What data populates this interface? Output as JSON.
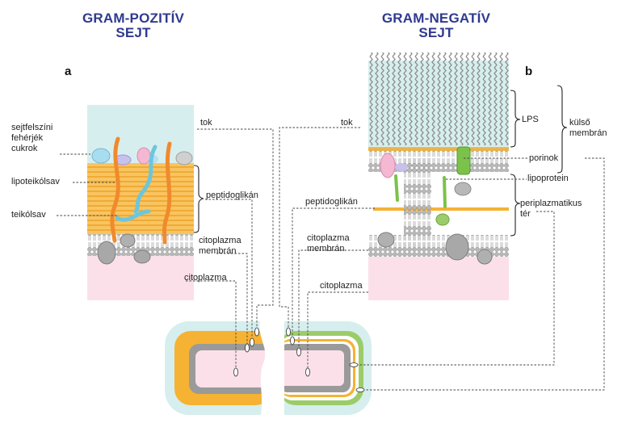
{
  "titles": {
    "gram_positive": [
      "GRAM-POZITÍV",
      "SEJT"
    ],
    "gram_negative": [
      "GRAM-NEGATÍV",
      "SEJT"
    ]
  },
  "panel_letters": {
    "a": "a",
    "b": "b"
  },
  "labels_positive": {
    "surface_proteins": [
      "sejtfelszíni",
      "fehérjék",
      "cukrok"
    ],
    "lipoteichoic": "lipoteikólsav",
    "teichoic": "teikólsav",
    "capsule": "tok",
    "peptidoglycan": "peptidoglikán",
    "cytoplasmic_membrane": [
      "citoplazma",
      "membrán"
    ],
    "cytoplasm": "citoplazma"
  },
  "labels_negative": {
    "capsule": "tok",
    "lps": "LPS",
    "outer_membrane": [
      "külső",
      "membrán"
    ],
    "porins": "porinok",
    "lipoprotein": "lipoprotein",
    "peptidoglycan": "peptidoglikán",
    "periplasm": [
      "periplazmatikus",
      "tér"
    ],
    "cytoplasmic_membrane": [
      "citoplazma",
      "membrán"
    ],
    "cytoplasm": "citoplazma"
  },
  "colors": {
    "title": "#2f3a8f",
    "capsule": "#d6eeee",
    "peptidoglycan": "#f6b233",
    "cytoplasm": "#fbe0ea",
    "membrane": "#9a9a9a",
    "lipoteichoic": "#f08a2c",
    "teichoic": "#6cc6dc",
    "porin": "#7cc24a",
    "outer_green": "#9ccc6a"
  }
}
